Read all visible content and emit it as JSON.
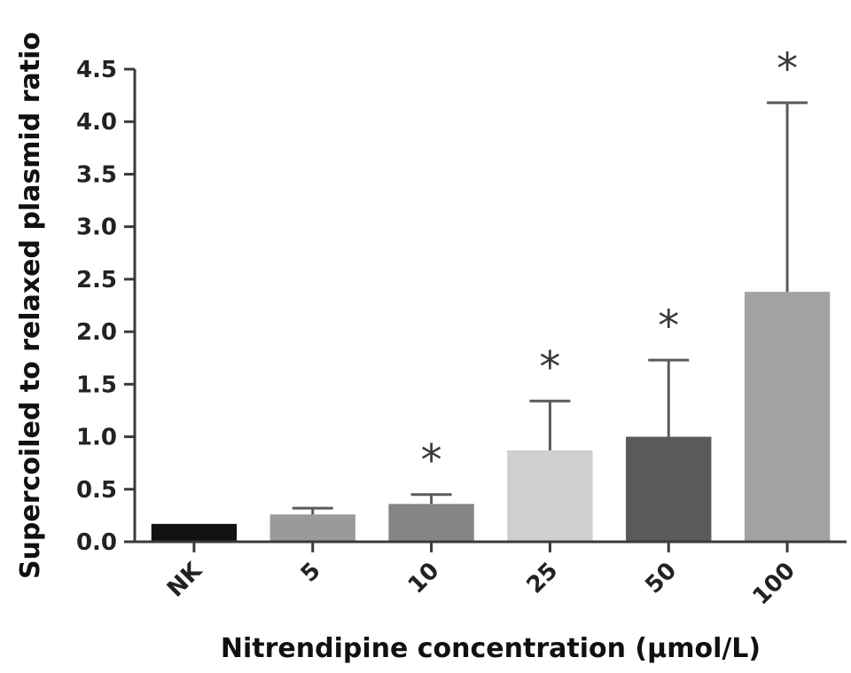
{
  "chart_data": {
    "type": "bar",
    "xlabel": "Nitrendipine concentration (μmol/L)",
    "ylabel": "Supercoiled to relaxed plasmid ratio",
    "ylim": [
      0,
      4.5
    ],
    "yticks": [
      "0.0",
      "0.5",
      "1.0",
      "1.5",
      "2.0",
      "2.5",
      "3.0",
      "3.5",
      "4.0",
      "4.5"
    ],
    "categories": [
      "NK",
      "5",
      "10",
      "25",
      "50",
      "100"
    ],
    "values": [
      0.17,
      0.26,
      0.36,
      0.87,
      1.0,
      2.38
    ],
    "error_upper": [
      0.17,
      0.32,
      0.45,
      1.34,
      1.73,
      4.18
    ],
    "significance": [
      "",
      "",
      "*",
      "*",
      "*",
      "*"
    ],
    "bar_colors": [
      "#111111",
      "#9a9a9a",
      "#858585",
      "#cfcfcf",
      "#5a5a5a",
      "#a3a3a3"
    ],
    "grid": false,
    "legend": "none"
  }
}
